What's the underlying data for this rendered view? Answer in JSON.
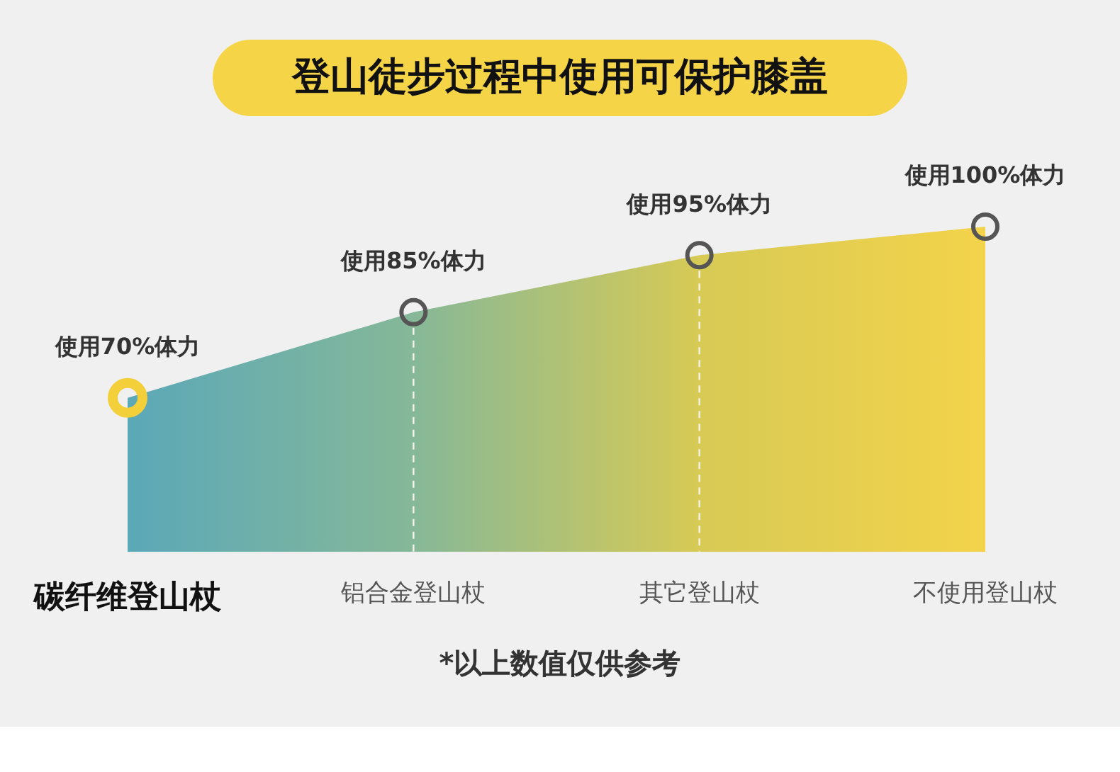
{
  "chart_data": {
    "type": "area",
    "title": "登山徒步过程中使用可保护膝盖",
    "categories": [
      "碳纤维登山杖",
      "铝合金登山杖",
      "其它登山杖",
      "不使用登山杖"
    ],
    "values": [
      70,
      85,
      95,
      100
    ],
    "value_labels": [
      "使用70%体力",
      "使用85%体力",
      "使用95%体力",
      "使用100%体力"
    ],
    "colors": [
      "#5ba8b8",
      "#86b898",
      "#d7ca55",
      "#f3d34a"
    ],
    "marker": "circle",
    "tick_labels": "x",
    "ref_lines": [
      {
        "axis": "x",
        "value": "铝合金登山杖",
        "color": "#f4f4ec",
        "line_style": "dashed"
      },
      {
        "axis": "x",
        "value": "其它登山杖",
        "color": "#f4f4ec",
        "line_style": "dashed"
      }
    ],
    "annotations": [
      "*以上数值仅供参考"
    ]
  }
}
